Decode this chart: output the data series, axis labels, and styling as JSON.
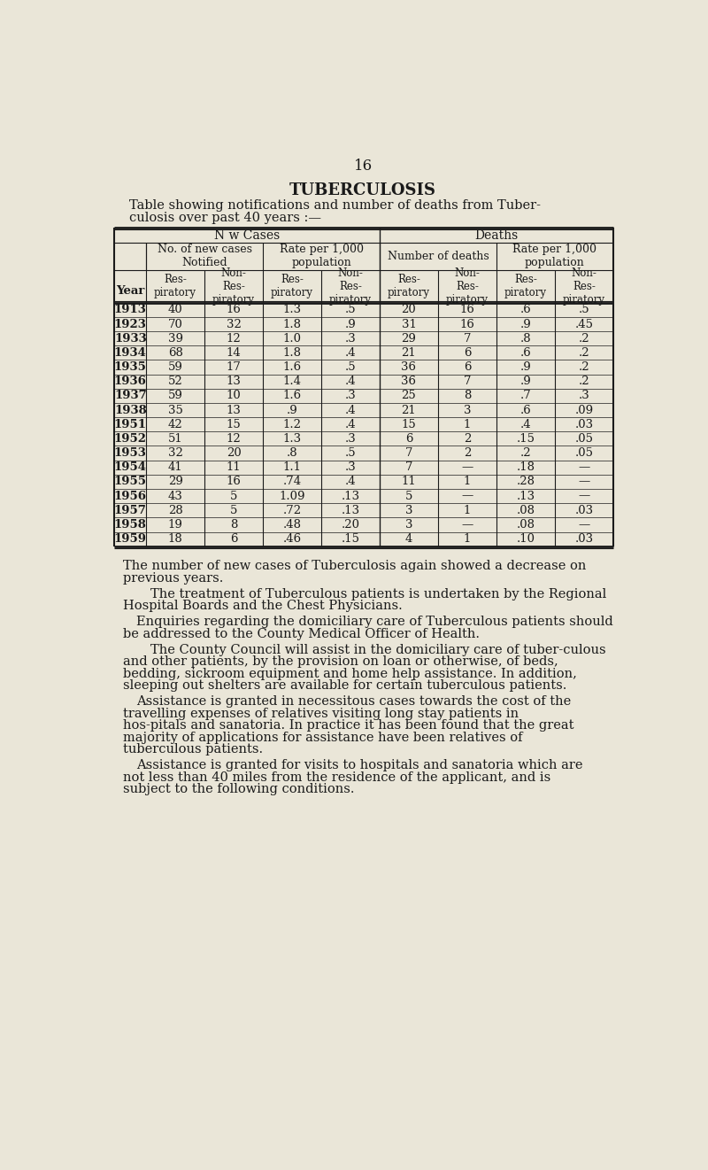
{
  "page_number": "16",
  "title": "TUBERCULOSIS",
  "subtitle_line1": "Table showing notifications and number of deaths from Tuber-",
  "subtitle_line2": "culosis over past 40 years :—",
  "bg_color": "#eae6d8",
  "text_color": "#1a1a1a",
  "header1": "N w Cases",
  "header2": "Deaths",
  "year_col": "Year",
  "table_data": [
    [
      "1913",
      "40",
      "16",
      "1.3",
      ".5",
      "20",
      "16",
      ".6",
      ".5"
    ],
    [
      "1923",
      "70",
      "32",
      "1.8",
      ".9",
      "31",
      "16",
      ".9",
      ".45"
    ],
    [
      "1933",
      "39",
      "12",
      "1.0",
      ".3",
      "29",
      "7",
      ".8",
      ".2"
    ],
    [
      "1934",
      "68",
      "14",
      "1.8",
      ".4",
      "21",
      "6",
      ".6",
      ".2"
    ],
    [
      "1935",
      "59",
      "17",
      "1.6",
      ".5",
      "36",
      "6",
      ".9",
      ".2"
    ],
    [
      "1936",
      "52",
      "13",
      "1.4",
      ".4",
      "36",
      "7",
      ".9",
      ".2"
    ],
    [
      "1937",
      "59",
      "10",
      "1.6",
      ".3",
      "25",
      "8",
      ".7",
      ".3"
    ],
    [
      "1938",
      "35",
      "13",
      ".9",
      ".4",
      "21",
      "3",
      ".6",
      ".09"
    ],
    [
      "1951",
      "42",
      "15",
      "1.2",
      ".4",
      "15",
      "1",
      ".4",
      ".03"
    ],
    [
      "1952",
      "51",
      "12",
      "1.3",
      ".3",
      "6",
      "2",
      ".15",
      ".05"
    ],
    [
      "1953",
      "32",
      "20",
      ".8",
      ".5",
      "7",
      "2",
      ".2",
      ".05"
    ],
    [
      "1954",
      "41",
      "11",
      "1.1",
      ".3",
      "7",
      "—",
      ".18",
      "—"
    ],
    [
      "1955",
      "29",
      "16",
      ".74",
      ".4",
      "11",
      "1",
      ".28",
      "—"
    ],
    [
      "1956",
      "43",
      "5",
      "1.09",
      ".13",
      "5",
      "—",
      ".13",
      "—"
    ],
    [
      "1957",
      "28",
      "5",
      ".72",
      ".13",
      "3",
      "1",
      ".08",
      ".03"
    ],
    [
      "1958",
      "19",
      "8",
      ".48",
      ".20",
      "3",
      "—",
      ".08",
      "—"
    ],
    [
      "1959",
      "18",
      "6",
      ".46",
      ".15",
      "4",
      "1",
      ".10",
      ".03"
    ]
  ],
  "paragraphs": [
    {
      "first_indent": 50,
      "rest_indent": 50,
      "text": "The number of new cases of Tuberculosis again showed a decrease on previous years."
    },
    {
      "first_indent": 90,
      "rest_indent": 50,
      "text": "The treatment of Tuberculous patients is undertaken by the Regional Hospital Boards and the Chest Physicians."
    },
    {
      "first_indent": 70,
      "rest_indent": 50,
      "text": "Enquiries regarding the domiciliary care of Tuberculous patients should be addressed to the County Medical Officer of Health."
    },
    {
      "first_indent": 90,
      "rest_indent": 50,
      "text": "The County Council will assist in the domiciliary care of tuber-culous and other patients, by the provision on loan or otherwise, of beds, bedding, sickroom equipment and home help assistance.  In addition, sleeping out shelters are available for certain tuberculous patients."
    },
    {
      "first_indent": 70,
      "rest_indent": 50,
      "text": "Assistance is granted in necessitous cases towards the cost of the travelling expenses of relatives visiting long stay patients in hos-pitals and sanatoria.  In practice it has been found that the great majority of applications for assistance have been relatives of tuberculous patients."
    },
    {
      "first_indent": 70,
      "rest_indent": 50,
      "text": "Assistance is granted for visits to hospitals and sanatoria which are not less than 40 miles  from the residence of the applicant, and is subject to the following conditions."
    }
  ]
}
